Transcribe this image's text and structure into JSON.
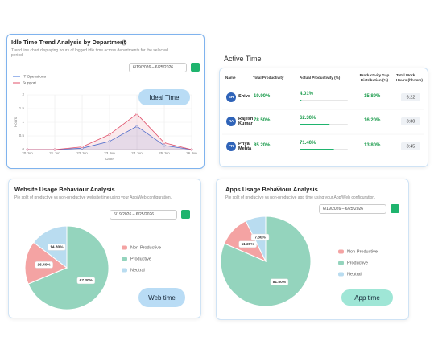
{
  "idle_card": {
    "title": "Idle Time Trend Analysis by Department",
    "subtitle": "Trend line chart displaying hours of logged idle time across departments for the selected period",
    "date_range": "6/19/2026 – 6/25/2026",
    "button": "Ideal Time",
    "chart_data": {
      "type": "line",
      "x_label": "Date",
      "y_label": "Hours",
      "categories": [
        "20 Jun",
        "21 Jun",
        "22 Jun",
        "23 Jun",
        "24 Jun",
        "25 Jun",
        "26 Jun"
      ],
      "series": [
        {
          "name": "IT Operations",
          "color": "#3b6fd8",
          "values": [
            0,
            0,
            0.05,
            0.3,
            0.85,
            0.15,
            0
          ]
        },
        {
          "name": "Support",
          "color": "#e0506a",
          "values": [
            0,
            0,
            0.1,
            0.55,
            1.3,
            0.25,
            0
          ]
        }
      ],
      "ylim": [
        0,
        2
      ],
      "yticks": [
        0,
        0.5,
        1,
        1.5,
        2
      ],
      "grid": true
    }
  },
  "active_card": {
    "title": "Active Time",
    "columns": [
      "Name",
      "Total Productivity",
      "Actual Productivity (%)",
      "Productivity Gap Distribution (%)",
      "Total Work Hours (hh:mm)"
    ],
    "rows": [
      {
        "initials": "SH",
        "name": "Shivs",
        "total": "19.90%",
        "actual": 4.01,
        "actual_label": "4.01%",
        "gap": "15.89%",
        "hours": "6:22"
      },
      {
        "initials": "RA",
        "name": "Rajesh Kumar",
        "total": "78.50%",
        "actual": 62.3,
        "actual_label": "62.30%",
        "gap": "16.20%",
        "hours": "8:30"
      },
      {
        "initials": "PR",
        "name": "Priya Mehta",
        "total": "85.20%",
        "actual": 71.4,
        "actual_label": "71.40%",
        "gap": "13.80%",
        "hours": "8:45"
      }
    ]
  },
  "web_card": {
    "title": "Website Usage Behaviour Analysis",
    "subtitle": "Pie split of productive vs non-productive website time using your App/Web configuration.",
    "date_range": "6/19/2026 – 6/25/2026",
    "button": "Web time",
    "chart_data": {
      "type": "pie",
      "categories": [
        "Non-Productive",
        "Productive",
        "Neutral"
      ],
      "values": [
        16.4,
        67.3,
        14.3
      ],
      "value_labels": [
        "16.40%",
        "67.30%",
        "14.30%"
      ],
      "colors": [
        "#f4a3a3",
        "#94d4bd",
        "#b9dcf0"
      ]
    }
  },
  "apps_card": {
    "title": "Apps Usage Behaviour Analysis",
    "subtitle": "Pie split of productive vs non-productive app time using your App/Web configuration.",
    "date_range": "6/19/2026 – 6/25/2026",
    "button": "App time",
    "chart_data": {
      "type": "pie",
      "categories": [
        "Non-Productive",
        "Productive",
        "Neutral"
      ],
      "values": [
        11.2,
        81.5,
        7.3
      ],
      "value_labels": [
        "11.20%",
        "81.50%",
        "7.30%"
      ],
      "colors": [
        "#f4a3a3",
        "#94d4bd",
        "#b9dcf0"
      ]
    }
  }
}
